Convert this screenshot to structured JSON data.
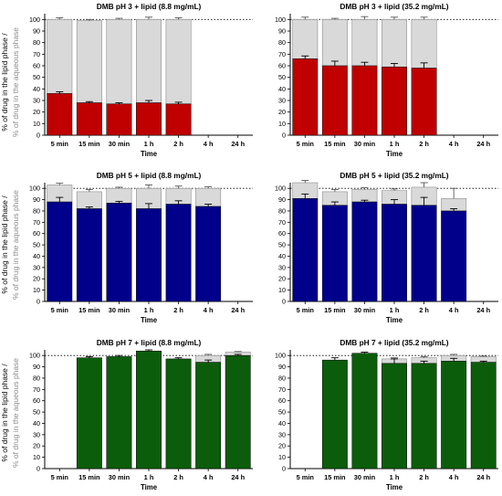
{
  "figure": {
    "y_axis_label_line1": "% of drug in the lipid phase /",
    "y_axis_label_line2": "% of drug in the aqueous phase",
    "y_axis_label_color_line1": "#000000",
    "y_axis_label_color_line2": "#8a8a8a"
  },
  "colors": {
    "red": "#c00000",
    "blue": "#00008b",
    "green": "#0b5d0b",
    "aqueous": "#d9d9d9",
    "dotted_reference": "#000000"
  },
  "chart_data": [
    {
      "type": "bar",
      "title": "DMB pH 3 + lipid (8.8 mg/mL)",
      "xlabel": "Time",
      "categories": [
        "5 min",
        "15 min",
        "30 min",
        "1 h",
        "2 h",
        "4 h",
        "24 h"
      ],
      "yticks": [
        0,
        10,
        20,
        30,
        40,
        50,
        60,
        70,
        80,
        90,
        100
      ],
      "ylim": [
        0,
        105
      ],
      "reference_line": 100,
      "stacked": true,
      "color_key": "red",
      "series": [
        {
          "role": "lipid",
          "values": [
            36,
            28,
            27,
            28,
            27,
            null,
            null
          ],
          "errors": [
            1.5,
            1.0,
            1.0,
            2.0,
            1.5,
            null,
            null
          ]
        },
        {
          "role": "aqueous",
          "values": [
            64,
            71,
            73,
            72,
            73,
            null,
            null
          ],
          "errors": [
            1.5,
            1.0,
            1.0,
            2.0,
            1.5,
            null,
            null
          ]
        }
      ]
    },
    {
      "type": "bar",
      "title": "DMB pH 3 + lipid (35.2 mg/mL)",
      "xlabel": "Time",
      "categories": [
        "5 min",
        "15 min",
        "30 min",
        "1 h",
        "2 h",
        "4 h",
        "24 h"
      ],
      "yticks": [
        0,
        10,
        20,
        30,
        40,
        50,
        60,
        70,
        80,
        90,
        100
      ],
      "ylim": [
        0,
        105
      ],
      "reference_line": 100,
      "stacked": true,
      "color_key": "red",
      "series": [
        {
          "role": "lipid",
          "values": [
            66,
            60,
            60,
            59,
            58,
            null,
            null
          ],
          "errors": [
            2.5,
            4.0,
            3.0,
            3.0,
            4.5,
            null,
            null
          ]
        },
        {
          "role": "aqueous",
          "values": [
            34,
            40,
            40,
            41,
            42,
            null,
            null
          ],
          "errors": [
            2.0,
            1.0,
            2.5,
            2.0,
            2.0,
            null,
            null
          ]
        }
      ]
    },
    {
      "type": "bar",
      "title": "DMB pH 5 + lipid (8.8 mg/mL)",
      "xlabel": "Time",
      "categories": [
        "5 min",
        "15 min",
        "30 min",
        "1 h",
        "2 h",
        "4 h",
        "24 h"
      ],
      "yticks": [
        0,
        10,
        20,
        30,
        40,
        50,
        60,
        70,
        80,
        90,
        100
      ],
      "ylim": [
        0,
        105
      ],
      "reference_line": 100,
      "stacked": true,
      "color_key": "blue",
      "series": [
        {
          "role": "lipid",
          "values": [
            88,
            82,
            87,
            82,
            86,
            84,
            null
          ],
          "errors": [
            4.0,
            1.5,
            1.5,
            4.5,
            3.0,
            2.0,
            null
          ]
        },
        {
          "role": "aqueous",
          "values": [
            15,
            15,
            13,
            18,
            14,
            16,
            null
          ],
          "errors": [
            1.5,
            2.0,
            1.0,
            3.0,
            2.0,
            1.5,
            null
          ]
        }
      ]
    },
    {
      "type": "bar",
      "title": "DMB pH 5 + lipid (35.2 mg/mL)",
      "xlabel": "Time",
      "categories": [
        "5 min",
        "15 min",
        "30 min",
        "1 h",
        "2 h",
        "4 h",
        "24 h"
      ],
      "yticks": [
        0,
        10,
        20,
        30,
        40,
        50,
        60,
        70,
        80,
        90,
        100
      ],
      "ylim": [
        0,
        105
      ],
      "reference_line": 100,
      "stacked": true,
      "color_key": "blue",
      "series": [
        {
          "role": "lipid",
          "values": [
            91,
            85,
            88,
            86,
            85,
            80,
            null
          ],
          "errors": [
            4.0,
            3.0,
            1.5,
            4.0,
            7.0,
            2.0,
            null
          ]
        },
        {
          "role": "aqueous",
          "values": [
            14,
            12,
            11,
            12,
            16,
            11,
            null
          ],
          "errors": [
            2.0,
            2.0,
            1.5,
            1.5,
            4.0,
            9.0,
            null
          ]
        }
      ]
    },
    {
      "type": "bar",
      "title": "DMB pH 7 + lipid (8.8 mg/mL)",
      "xlabel": "Time",
      "categories": [
        "5 min",
        "15 min",
        "30 min",
        "1 h",
        "2 h",
        "4 h",
        "24 h"
      ],
      "yticks": [
        0,
        10,
        20,
        30,
        40,
        50,
        60,
        70,
        80,
        90,
        100
      ],
      "ylim": [
        0,
        105
      ],
      "reference_line": 100,
      "stacked": true,
      "color_key": "green",
      "series": [
        {
          "role": "lipid",
          "values": [
            null,
            98,
            99,
            104,
            97,
            94,
            100
          ],
          "errors": [
            null,
            1.0,
            1.0,
            1.0,
            1.0,
            2.0,
            1.0
          ]
        },
        {
          "role": "aqueous",
          "values": [
            null,
            0,
            0,
            0,
            0,
            6,
            3
          ],
          "errors": [
            null,
            null,
            null,
            null,
            null,
            1.0,
            0.5
          ]
        }
      ]
    },
    {
      "type": "bar",
      "title": "DMB pH 7 + lipid (35.2 mg/mL)",
      "xlabel": "Time",
      "categories": [
        "5 min",
        "15 min",
        "30 min",
        "1 h",
        "2 h",
        "4 h",
        "24 h"
      ],
      "yticks": [
        0,
        10,
        20,
        30,
        40,
        50,
        60,
        70,
        80,
        90,
        100
      ],
      "ylim": [
        0,
        105
      ],
      "reference_line": 100,
      "stacked": true,
      "color_key": "green",
      "series": [
        {
          "role": "lipid",
          "values": [
            null,
            96,
            102,
            93,
            93,
            95,
            94
          ],
          "errors": [
            null,
            2.0,
            1.0,
            4.0,
            2.0,
            2.5,
            1.0
          ]
        },
        {
          "role": "aqueous",
          "values": [
            null,
            0,
            0,
            4,
            5,
            5,
            5
          ],
          "errors": [
            null,
            null,
            null,
            1.0,
            1.0,
            1.0,
            0.5
          ]
        }
      ]
    }
  ]
}
